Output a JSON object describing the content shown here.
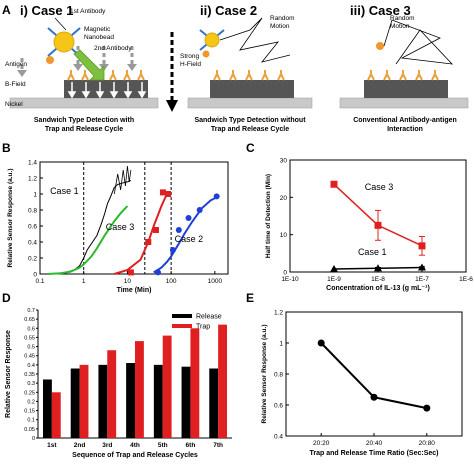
{
  "panel_a": {
    "label": "A",
    "cases": [
      {
        "title": "i) Case 1",
        "caption_line1": "Sandwich Type Detection with",
        "caption_line2": "Trap and Release Cycle",
        "labels": {
          "first_antibody": "1st Antibody",
          "magnetic_nanobead_1": "Magnetic",
          "magnetic_nanobead_2": "Nanobead",
          "second_antibody": "2nd Antibody",
          "antigen": "Antigen",
          "b_field": "B-Field",
          "nickel": "Nickel"
        }
      },
      {
        "title": "ii) Case 2",
        "caption_line1": "Sandwich Type Detection without",
        "caption_line2": "Trap and Release Cycle",
        "labels": {
          "strong_1": "Strong",
          "strong_2": "H-Field",
          "random_1": "Random",
          "random_2": "Motion"
        }
      },
      {
        "title": "iii) Case 3",
        "caption_line1": "Conventional Antibody-antigen",
        "caption_line2": "Interaction",
        "labels": {
          "random_1": "Random",
          "random_2": "Motion"
        }
      }
    ],
    "colors": {
      "antibody": "#e8a33b",
      "bead": "#f5c518",
      "antigen": "#f0982a",
      "stem": "#2f73c9",
      "nickel": "#555555",
      "field_arrow": "#7fbf3f"
    }
  },
  "chart_data": [
    {
      "panel": "B",
      "type": "line",
      "xlabel": "Time (Min)",
      "ylabel": "Relative Sensor Response (a.u.)",
      "xscale": "log",
      "xlim": [
        0.1,
        2000
      ],
      "ylim": [
        0,
        1.4
      ],
      "xticks": [
        "0.1",
        "1",
        "10",
        "100",
        "1000"
      ],
      "yticks": [
        "0",
        "0.2",
        "0.4",
        "0.6",
        "0.8",
        "1",
        "1.2",
        "1.4"
      ],
      "vlines": [
        1,
        25,
        100
      ],
      "annotations": [
        "Case 1",
        "Case 3",
        "Case 2"
      ],
      "series": [
        {
          "name": "Case 1",
          "color": "#000000",
          "style": "line",
          "x": [
            0.15,
            0.25,
            0.4,
            0.6,
            0.8,
            1.0,
            1.2,
            1.5,
            2.0,
            2.5,
            3.0,
            3.5,
            4.0,
            4.5,
            5.0,
            6.0,
            7.0,
            8.0,
            9.0,
            10,
            11,
            12
          ],
          "y": [
            0.0,
            0.01,
            0.02,
            0.05,
            0.1,
            0.2,
            0.3,
            0.38,
            0.48,
            0.62,
            0.75,
            0.88,
            0.95,
            1.02,
            1.08,
            1.12,
            1.13,
            1.14,
            1.15,
            1.15,
            1.16,
            1.17
          ]
        },
        {
          "name": "Case 1 fit",
          "color": "#2db82d",
          "style": "line",
          "x": [
            0.15,
            0.3,
            0.5,
            0.8,
            1.0,
            1.5,
            2.0,
            3.0,
            4.0,
            5.0,
            7.0,
            10
          ],
          "y": [
            0.0,
            0.01,
            0.03,
            0.08,
            0.12,
            0.22,
            0.32,
            0.48,
            0.58,
            0.66,
            0.76,
            0.85
          ]
        },
        {
          "name": "Case 3",
          "color": "#e02020",
          "style": "line-markers",
          "marker": "square",
          "x": [
            5,
            10,
            20,
            30,
            40,
            60,
            80,
            100
          ],
          "y": [
            0.0,
            0.05,
            0.18,
            0.4,
            0.6,
            0.85,
            1.0,
            1.0
          ],
          "points_x": [
            12,
            30,
            45,
            65,
            85
          ],
          "points_y": [
            0.02,
            0.4,
            0.55,
            1.02,
            1.0
          ]
        },
        {
          "name": "Case 2",
          "color": "#1f3fd6",
          "style": "line-markers",
          "marker": "circle",
          "x": [
            40,
            60,
            80,
            100,
            150,
            200,
            300,
            500,
            800,
            1200
          ],
          "y": [
            0.02,
            0.08,
            0.15,
            0.22,
            0.38,
            0.5,
            0.65,
            0.82,
            0.92,
            0.97
          ],
          "points_x": [
            50,
            110,
            150,
            250,
            450,
            1100
          ],
          "points_y": [
            0.02,
            0.3,
            0.55,
            0.7,
            0.8,
            0.97
          ]
        }
      ]
    },
    {
      "panel": "C",
      "type": "line",
      "xlabel": "Concentration of IL-13 (g mL⁻¹)",
      "ylabel": "Half time of Detection (Min)",
      "xscale": "log",
      "xlim": [
        1e-10,
        1e-06
      ],
      "ylim": [
        0,
        30
      ],
      "xticks": [
        "1E-10",
        "1E-9",
        "1E-8",
        "1E-7",
        "1E-6"
      ],
      "yticks": [
        "0",
        "10",
        "20",
        "30"
      ],
      "series": [
        {
          "name": "Case 3",
          "color": "#e02020",
          "marker": "square",
          "x": [
            1e-09,
            1e-08,
            1e-07
          ],
          "y": [
            23.5,
            12.5,
            7.0
          ],
          "err": [
            0,
            4,
            2.5
          ]
        },
        {
          "name": "Case 1",
          "color": "#000000",
          "marker": "triangle",
          "x": [
            1e-09,
            1e-08,
            1e-07
          ],
          "y": [
            0.8,
            1.0,
            1.2
          ],
          "err": [
            0,
            0.2,
            0.2
          ]
        }
      ]
    },
    {
      "panel": "D",
      "type": "bar",
      "xlabel": "Sequence of Trap and Release Cycles",
      "ylabel": "Relative Sensor Response",
      "ylim": [
        0,
        0.7
      ],
      "yticks": [
        "0",
        "0.05",
        "0.1",
        "0.15",
        "0.2",
        "0.25",
        "0.3",
        "0.35",
        "0.4",
        "0.45",
        "0.5",
        "0.55",
        "0.6",
        "0.65",
        "0.7"
      ],
      "categories": [
        "1st",
        "2nd",
        "3rd",
        "4th",
        "5th",
        "6th",
        "7th"
      ],
      "legend_position": "top-right",
      "series": [
        {
          "name": "Release",
          "color": "#000000",
          "values": [
            0.32,
            0.38,
            0.4,
            0.41,
            0.4,
            0.39,
            0.38
          ]
        },
        {
          "name": "Trap",
          "color": "#e02020",
          "values": [
            0.25,
            0.4,
            0.48,
            0.53,
            0.56,
            0.6,
            0.62
          ]
        }
      ]
    },
    {
      "panel": "E",
      "type": "line",
      "xlabel": "Trap and Release Time Ratio (Sec:Sec)",
      "ylabel": "Relative Sensor Response (a.u.)",
      "ylim": [
        0.4,
        1.2
      ],
      "yticks": [
        "0.4",
        "0.6",
        "0.8",
        "1",
        "1.2"
      ],
      "categories": [
        "20:20",
        "20:40",
        "20:80"
      ],
      "series": [
        {
          "color": "#000000",
          "values": [
            1.0,
            0.65,
            0.58
          ]
        }
      ]
    }
  ]
}
